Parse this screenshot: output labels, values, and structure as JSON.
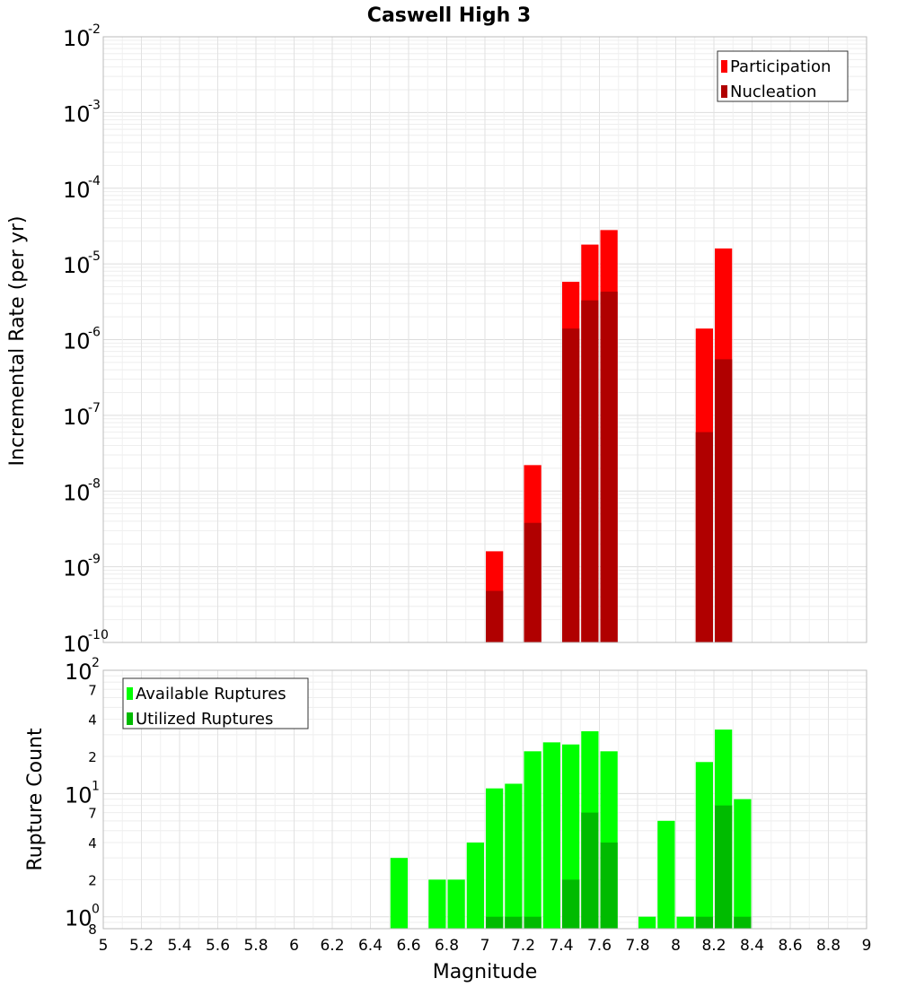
{
  "chart_data": {
    "title": "Caswell High 3",
    "xlabel": "Magnitude",
    "x_ticks": [
      "5",
      "5.2",
      "5.4",
      "5.6",
      "5.8",
      "6",
      "6.2",
      "6.4",
      "6.6",
      "6.8",
      "7",
      "7.2",
      "7.4",
      "7.6",
      "7.8",
      "8",
      "8.2",
      "8.4",
      "8.6",
      "8.8",
      "9"
    ],
    "xlim": [
      5,
      9
    ],
    "bin_width": 0.1,
    "panels": [
      {
        "type": "bar",
        "scale": "log",
        "ylabel": "Incremental Rate (per yr)",
        "ylim": [
          1e-10,
          0.01
        ],
        "y_tick_exponents": [
          "-10",
          "-9",
          "-8",
          "-7",
          "-6",
          "-5",
          "-4",
          "-3",
          "-2"
        ],
        "y_tick_base": "10",
        "grid": true,
        "legend_position": "top-right",
        "series": [
          {
            "name": "Participation",
            "color": "#ff0000",
            "x": [
              7.05,
              7.25,
              7.45,
              7.55,
              7.65,
              8.15,
              8.25
            ],
            "values": [
              1.6e-09,
              2.2e-08,
              5.8e-06,
              1.8e-05,
              2.8e-05,
              1.4e-06,
              1.6e-05
            ]
          },
          {
            "name": "Nucleation",
            "color": "#b00000",
            "x": [
              7.05,
              7.25,
              7.45,
              7.55,
              7.65,
              8.15,
              8.25
            ],
            "values": [
              4.8e-10,
              3.8e-09,
              1.4e-06,
              3.3e-06,
              4.3e-06,
              6e-08,
              5.5e-07
            ]
          }
        ]
      },
      {
        "type": "bar",
        "scale": "log",
        "ylabel": "Rupture Count",
        "ylim": [
          0.8,
          100
        ],
        "y_tick_base": "10",
        "major_ticks": [
          {
            "value": 1,
            "exp": "0"
          },
          {
            "value": 10,
            "exp": "1"
          },
          {
            "value": 100,
            "exp": "2"
          }
        ],
        "minor_tick_labels": [
          {
            "value": 0.8,
            "label": "8"
          },
          {
            "value": 2,
            "label": "2"
          },
          {
            "value": 4,
            "label": "4"
          },
          {
            "value": 7,
            "label": "7"
          },
          {
            "value": 20,
            "label": "2"
          },
          {
            "value": 40,
            "label": "4"
          },
          {
            "value": 70,
            "label": "7"
          }
        ],
        "grid": true,
        "legend_position": "top-left",
        "series": [
          {
            "name": "Available Ruptures",
            "color": "#00ff00",
            "x": [
              6.55,
              6.75,
              6.85,
              6.95,
              7.05,
              7.15,
              7.25,
              7.35,
              7.45,
              7.55,
              7.65,
              7.85,
              7.95,
              8.05,
              8.15,
              8.25,
              8.35
            ],
            "values": [
              3,
              2,
              2,
              4,
              11,
              12,
              22,
              26,
              25,
              32,
              22,
              1,
              6,
              1,
              18,
              33,
              9
            ]
          },
          {
            "name": "Utilized Ruptures",
            "color": "#00bb00",
            "x": [
              7.05,
              7.15,
              7.25,
              7.45,
              7.55,
              7.65,
              8.15,
              8.25,
              8.35
            ],
            "values": [
              1,
              1,
              1,
              2,
              7,
              4,
              1,
              8,
              1
            ]
          }
        ]
      }
    ]
  }
}
